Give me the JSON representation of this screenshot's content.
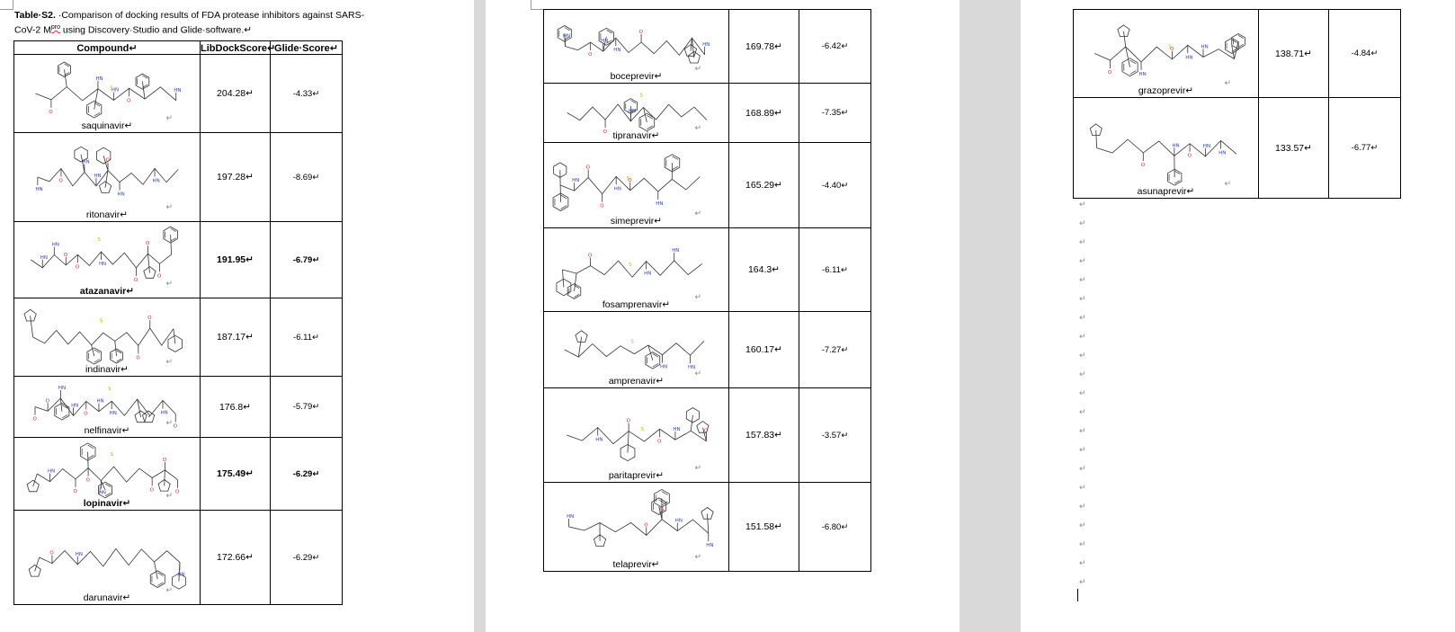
{
  "caption": {
    "label": "Table·S2.",
    "text_line1": " ·Comparison of docking results of FDA protease inhibitors against SARS-",
    "text_line2_pre": "CoV-2 M",
    "text_sup": "pro",
    "text_line2_post": " using Discovery·Studio and Glide·software.↵"
  },
  "headers": {
    "compound": "Compound↵",
    "libdock": "LibDockScore↵",
    "glide": "Glide·Score↵"
  },
  "para_mark": "↵",
  "page1_rows": [
    {
      "name": "saquinavir↵",
      "lib": "204.28↵",
      "glide": "-4.33↵",
      "bold": false
    },
    {
      "name": "ritonavir↵",
      "lib": "197.28↵",
      "glide": "-8.69↵",
      "bold": false
    },
    {
      "name": "atazanavir↵",
      "lib": "191.95↵",
      "glide": "-6.79↵",
      "bold": true
    },
    {
      "name": "indinavir↵",
      "lib": "187.17↵",
      "glide": "-6.11↵",
      "bold": false
    },
    {
      "name": "nelfinavir↵",
      "lib": "176.8↵",
      "glide": "-5.79↵",
      "bold": false
    },
    {
      "name": "lopinavir↵",
      "lib": "175.49↵",
      "glide": "-6.29↵",
      "bold": true
    },
    {
      "name": "darunavir↵",
      "lib": "172.66↵",
      "glide": "-6.29↵",
      "bold": false
    }
  ],
  "page2_rows": [
    {
      "name": "boceprevir↵",
      "lib": "169.78↵",
      "glide": "-6.42↵"
    },
    {
      "name": "tipranavir↵",
      "lib": "168.89↵",
      "glide": "-7.35↵"
    },
    {
      "name": "simeprevir↵",
      "lib": "165.29↵",
      "glide": "-4.40↵"
    },
    {
      "name": "fosamprenavir↵",
      "lib": "164.3↵",
      "glide": "-6.11↵"
    },
    {
      "name": "amprenavir↵",
      "lib": "160.17↵",
      "glide": "-7.27↵"
    },
    {
      "name": "paritaprevir↵",
      "lib": "157.83↵",
      "glide": "-3.57↵"
    },
    {
      "name": "telaprevir↵",
      "lib": "151.58↵",
      "glide": "-6.80↵"
    }
  ],
  "page3_rows": [
    {
      "name": "grazoprevir↵",
      "lib": "138.71↵",
      "glide": "-4.84↵"
    },
    {
      "name": "asunaprevir↵",
      "lib": "133.57↵",
      "glide": "-6.77↵"
    }
  ],
  "colors": {
    "bond": "#333333",
    "oxygen": "#e02020",
    "nitrogen": "#3040c0",
    "sulfur": "#c8b000",
    "fluorine": "#80c020",
    "chlorine": "#20b020"
  }
}
